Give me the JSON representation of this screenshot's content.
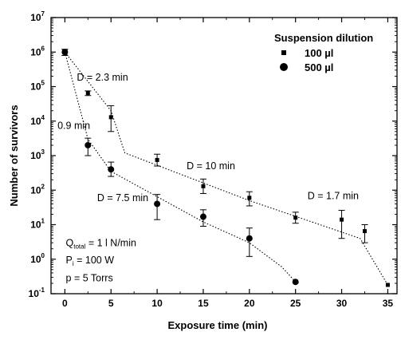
{
  "chart_data": {
    "type": "scatter",
    "xlabel": "Exposure time (min)",
    "ylabel": "Number of survivors",
    "xlim": [
      -1.5,
      36
    ],
    "ylog": true,
    "ylim": [
      0.1,
      10000000
    ],
    "x_ticks": [
      0,
      5,
      10,
      15,
      20,
      25,
      30,
      35
    ],
    "y_ticks": [
      {
        "value": 0.1,
        "base": "10",
        "exp": "-1"
      },
      {
        "value": 1,
        "base": "10",
        "exp": "0"
      },
      {
        "value": 10,
        "base": "10",
        "exp": "1"
      },
      {
        "value": 100,
        "base": "10",
        "exp": "2"
      },
      {
        "value": 1000,
        "base": "10",
        "exp": "3"
      },
      {
        "value": 10000,
        "base": "10",
        "exp": "4"
      },
      {
        "value": 100000,
        "base": "10",
        "exp": "5"
      },
      {
        "value": 1000000,
        "base": "10",
        "exp": "6"
      },
      {
        "value": 10000000,
        "base": "10",
        "exp": "7"
      }
    ],
    "legend_title": "Suspension dilution",
    "legend_position": "top-right",
    "series": [
      {
        "name": "100 µl",
        "marker": "square",
        "points": [
          {
            "x": 0,
            "y": 1000000,
            "lo": 800000,
            "hi": 1200000
          },
          {
            "x": 2.5,
            "y": 65000,
            "lo": 55000,
            "hi": 75000
          },
          {
            "x": 5,
            "y": 13000,
            "lo": 5000,
            "hi": 28000
          },
          {
            "x": 10,
            "y": 750,
            "lo": 500,
            "hi": 1100
          },
          {
            "x": 15,
            "y": 130,
            "lo": 80,
            "hi": 210
          },
          {
            "x": 20,
            "y": 60,
            "lo": 35,
            "hi": 90
          },
          {
            "x": 25,
            "y": 16,
            "lo": 11,
            "hi": 23
          },
          {
            "x": 30,
            "y": 14,
            "lo": 4,
            "hi": 26
          },
          {
            "x": 32.5,
            "y": 6.5,
            "lo": 3,
            "hi": 10
          },
          {
            "x": 35,
            "y": 0.18,
            "lo": 0.18,
            "hi": 0.18
          }
        ],
        "fit_line": [
          [
            0,
            1000000
          ],
          [
            5,
            20000
          ],
          [
            6.5,
            1200
          ],
          [
            20,
            50
          ],
          [
            32,
            4
          ],
          [
            35,
            0.18
          ]
        ]
      },
      {
        "name": "500 µl",
        "marker": "circle",
        "points": [
          {
            "x": 0,
            "y": 1000000,
            "lo": 800000,
            "hi": 1200000
          },
          {
            "x": 2.5,
            "y": 2000,
            "lo": 1000,
            "hi": 3200
          },
          {
            "x": 5,
            "y": 400,
            "lo": 250,
            "hi": 650
          },
          {
            "x": 10,
            "y": 40,
            "lo": 14,
            "hi": 75
          },
          {
            "x": 15,
            "y": 17,
            "lo": 9,
            "hi": 27
          },
          {
            "x": 20,
            "y": 4,
            "lo": 1.2,
            "hi": 8
          },
          {
            "x": 25,
            "y": 0.22,
            "lo": 0.22,
            "hi": 0.22
          }
        ],
        "fit_line": [
          [
            0,
            1000000
          ],
          [
            2.5,
            3000
          ],
          [
            5,
            350
          ],
          [
            15,
            12
          ],
          [
            20,
            3
          ],
          [
            23.5,
            0.6
          ],
          [
            25,
            0.22
          ]
        ]
      }
    ],
    "annotations": [
      {
        "text": "D = 2.3 min",
        "x": 1.3,
        "y": 150000
      },
      {
        "text": "0.9 min",
        "x": -0.8,
        "y": 6000
      },
      {
        "text": "D = 10 min",
        "x": 13.2,
        "y": 400
      },
      {
        "text": "D = 7.5 min",
        "x": 3.5,
        "y": 48
      },
      {
        "text": "D = 1.7 min",
        "x": 26.3,
        "y": 55
      }
    ],
    "conditions": [
      {
        "main": "Q",
        "sub": "total",
        "rest": " = 1 l N/min",
        "x": 0.1,
        "y": 2.4
      },
      {
        "main": "P",
        "sub": "i",
        "rest": " = 100 W",
        "x": 0.1,
        "y": 0.75
      },
      {
        "main": "p",
        "sub": "",
        "rest": " = 5 Torrs",
        "x": 0.1,
        "y": 0.23
      }
    ]
  }
}
